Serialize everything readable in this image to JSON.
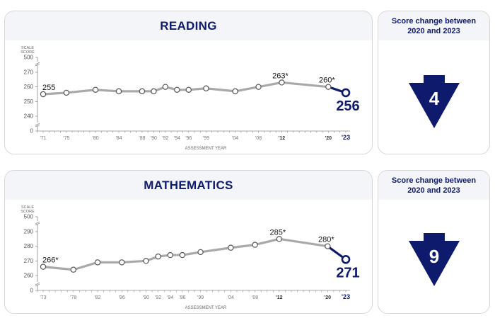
{
  "colors": {
    "navy": "#0e1a6b",
    "line_gray": "#a9a9a9",
    "header_bg": "#f4f5f8",
    "border": "#d6d6d6",
    "axis": "#8a8a8a"
  },
  "panels": [
    {
      "subject": "READING",
      "y_axis_label_line1": "SCALE",
      "y_axis_label_line2": "SCORE",
      "x_axis_label": "ASSESSMENT YEAR",
      "change": {
        "title_line1": "Score change between",
        "title_line2": "2020 and 2023",
        "value": "4",
        "direction": "down"
      }
    },
    {
      "subject": "MATHEMATICS",
      "y_axis_label_line1": "SCALE",
      "y_axis_label_line2": "SCORE",
      "x_axis_label": "ASSESSMENT YEAR",
      "change": {
        "title_line1": "Score change between",
        "title_line2": "2020 and 2023",
        "value": "9",
        "direction": "down"
      }
    }
  ],
  "chart_data": [
    {
      "type": "line",
      "title": "READING",
      "xlabel": "ASSESSMENT YEAR",
      "ylabel": "SCALE SCORE",
      "y_ticks": [
        "0",
        "240",
        "250",
        "260",
        "270",
        "500"
      ],
      "y_axis_breaks": true,
      "x": [
        "'71",
        "'75",
        "'80",
        "'84",
        "'88",
        "'90",
        "'92",
        "'94",
        "'96",
        "'99",
        "'04",
        "'08",
        "'12",
        "'20",
        "'23"
      ],
      "x_years": [
        1971,
        1975,
        1980,
        1984,
        1988,
        1990,
        1992,
        1994,
        1996,
        1999,
        2004,
        2008,
        2012,
        2020,
        2023
      ],
      "values": [
        255,
        256,
        258,
        257,
        257,
        257,
        260,
        258,
        258,
        259,
        257,
        260,
        263,
        260,
        256
      ],
      "labels": [
        {
          "index": 0,
          "text": "255"
        },
        {
          "index": 12,
          "text": "263*"
        },
        {
          "index": 13,
          "text": "260*"
        },
        {
          "index": 14,
          "text": "256",
          "highlight": true
        }
      ],
      "ylim": [
        240,
        270
      ]
    },
    {
      "type": "line",
      "title": "MATHEMATICS",
      "xlabel": "ASSESSMENT YEAR",
      "ylabel": "SCALE SCORE",
      "y_ticks": [
        "0",
        "260",
        "270",
        "280",
        "290",
        "500"
      ],
      "y_axis_breaks": true,
      "x": [
        "'73",
        "'78",
        "'82",
        "'86",
        "'90",
        "'92",
        "'94",
        "'96",
        "'99",
        "'04",
        "'08",
        "'12",
        "'20",
        "'23"
      ],
      "x_years": [
        1973,
        1978,
        1982,
        1986,
        1990,
        1992,
        1994,
        1996,
        1999,
        2004,
        2008,
        2012,
        2020,
        2023
      ],
      "values": [
        266,
        264,
        269,
        269,
        270,
        273,
        274,
        274,
        276,
        279,
        281,
        285,
        280,
        271
      ],
      "labels": [
        {
          "index": 0,
          "text": "266*"
        },
        {
          "index": 11,
          "text": "285*"
        },
        {
          "index": 12,
          "text": "280*"
        },
        {
          "index": 13,
          "text": "271",
          "highlight": true
        }
      ],
      "ylim": [
        260,
        290
      ]
    }
  ]
}
